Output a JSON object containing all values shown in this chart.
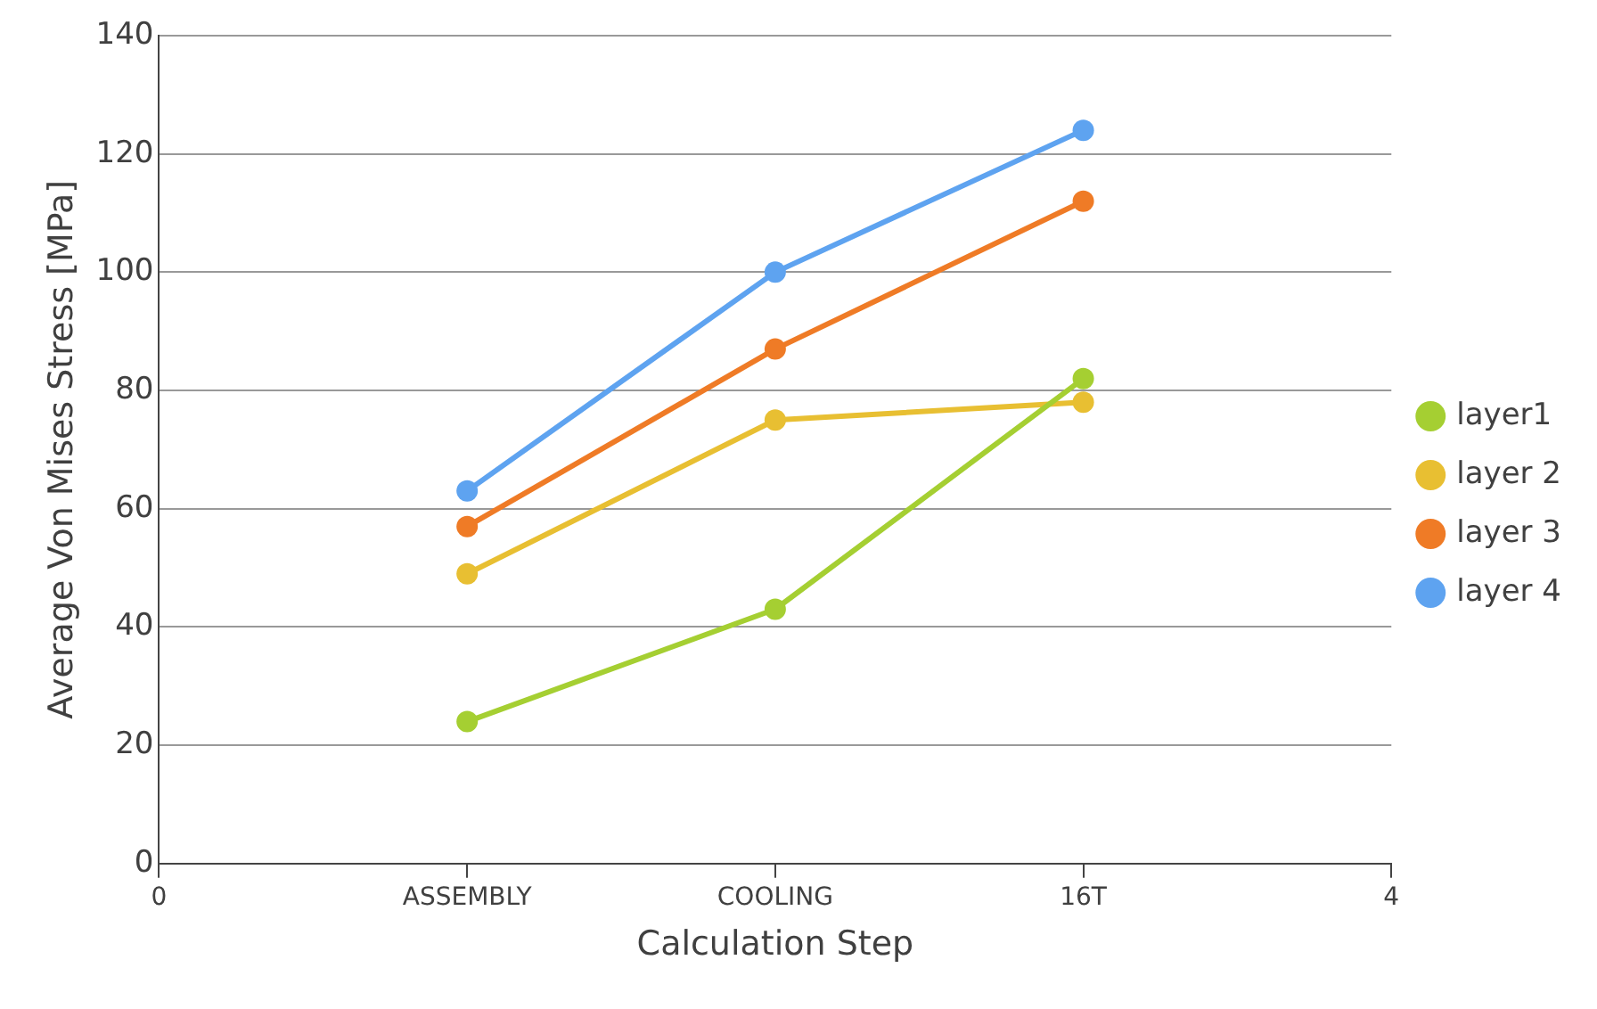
{
  "chart_data": {
    "type": "line",
    "xlabel": "Calculation Step",
    "ylabel": "Average Von Mises Stress [MPa]",
    "categories": [
      "0",
      "ASSEMBLY",
      "COOLING",
      "16T",
      "4"
    ],
    "series": [
      {
        "name": "layer1",
        "color": "#a5cf32",
        "values": [
          null,
          24,
          43,
          82,
          null
        ]
      },
      {
        "name": "layer 2",
        "color": "#e8bf32",
        "values": [
          null,
          49,
          75,
          78,
          null
        ]
      },
      {
        "name": "layer 3",
        "color": "#ef7b26",
        "values": [
          null,
          57,
          87,
          112,
          null
        ]
      },
      {
        "name": "layer 4",
        "color": "#5ea3f0",
        "values": [
          null,
          63,
          100,
          124,
          null
        ]
      }
    ],
    "ylim": [
      0,
      140
    ],
    "yticks": [
      0,
      20,
      40,
      60,
      80,
      100,
      120,
      140
    ],
    "grid": "y",
    "legend": "right",
    "marker": "circle",
    "line_style": "solid"
  }
}
